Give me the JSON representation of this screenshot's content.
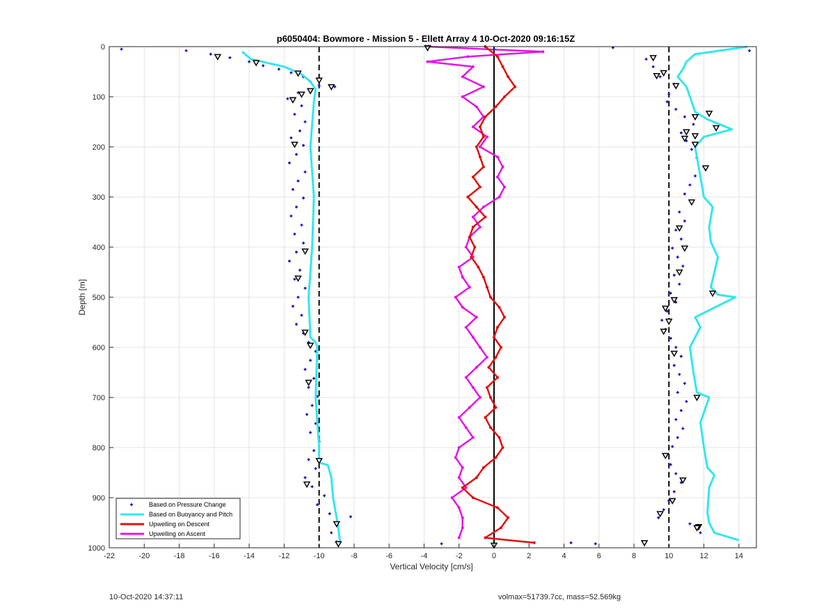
{
  "footer": {
    "timestamp": "10-Oct-2020 14:37:11",
    "info": "volmax=51739.7cc, mass=52.569kg"
  },
  "chart_data": {
    "type": "scatter",
    "title": "p6050404: Bowmore - Mission 5 - Ellett Array 4 10-Oct-2020 09:16:15Z",
    "xlabel": "Vertical Velocity [cm/s]",
    "ylabel": "Depth [m]",
    "xlim": [
      -22,
      15
    ],
    "ylim": [
      0,
      1000
    ],
    "y_reversed": true,
    "grid": true,
    "legend_position": "bottom-left",
    "xticks": [
      -22,
      -20,
      -18,
      -16,
      -14,
      -12,
      -10,
      -8,
      -6,
      -4,
      -2,
      0,
      2,
      4,
      6,
      8,
      10,
      12,
      14
    ],
    "yticks": [
      0,
      100,
      200,
      300,
      400,
      500,
      600,
      700,
      800,
      900,
      1000
    ],
    "reference_lines": [
      {
        "x": -10,
        "style": "dashed",
        "color": "#000000"
      },
      {
        "x": 0,
        "style": "solid",
        "color": "#000000"
      },
      {
        "x": 10,
        "style": "dashed",
        "color": "#000000"
      }
    ],
    "series": [
      {
        "name": "Based on Pressure Change",
        "kind": "points",
        "color": "#1515b8",
        "points": [
          [
            -21.3,
            5
          ],
          [
            -17.6,
            8
          ],
          [
            -16.2,
            15
          ],
          [
            -15.1,
            22
          ],
          [
            -14.0,
            30
          ],
          [
            -13.2,
            38
          ],
          [
            -12.3,
            45
          ],
          [
            -11.6,
            52
          ],
          [
            -10.9,
            60
          ],
          [
            -10.5,
            70
          ],
          [
            -10.0,
            78
          ],
          [
            -9.1,
            80
          ],
          [
            -11.2,
            92
          ],
          [
            -11.8,
            104
          ],
          [
            -11.0,
            118
          ],
          [
            -11.4,
            135
          ],
          [
            -10.8,
            150
          ],
          [
            -11.1,
            168
          ],
          [
            -11.6,
            182
          ],
          [
            -10.9,
            197
          ],
          [
            -11.3,
            215
          ],
          [
            -11.7,
            232
          ],
          [
            -10.8,
            250
          ],
          [
            -11.2,
            268
          ],
          [
            -11.5,
            285
          ],
          [
            -10.9,
            302
          ],
          [
            -11.3,
            320
          ],
          [
            -11.6,
            338
          ],
          [
            -11.0,
            356
          ],
          [
            -11.4,
            374
          ],
          [
            -10.9,
            392
          ],
          [
            -11.3,
            410
          ],
          [
            -11.7,
            428
          ],
          [
            -11.1,
            446
          ],
          [
            -11.4,
            464
          ],
          [
            -10.8,
            482
          ],
          [
            -11.2,
            500
          ],
          [
            -11.5,
            518
          ],
          [
            -11.0,
            536
          ],
          [
            -11.3,
            554
          ],
          [
            -10.9,
            572
          ],
          [
            -10.6,
            590
          ],
          [
            -10.2,
            608
          ],
          [
            -10.5,
            626
          ],
          [
            -10.8,
            644
          ],
          [
            -10.3,
            662
          ],
          [
            -10.6,
            680
          ],
          [
            -10.1,
            698
          ],
          [
            -10.4,
            716
          ],
          [
            -10.7,
            734
          ],
          [
            -10.2,
            752
          ],
          [
            -10.5,
            770
          ],
          [
            -10.0,
            788
          ],
          [
            -10.3,
            806
          ],
          [
            -10.6,
            824
          ],
          [
            -10.2,
            842
          ],
          [
            -10.8,
            860
          ],
          [
            -10.4,
            878
          ],
          [
            -9.7,
            896
          ],
          [
            -10.1,
            914
          ],
          [
            -9.4,
            932
          ],
          [
            -8.2,
            938
          ],
          [
            -9.0,
            952
          ],
          [
            -9.3,
            970
          ],
          [
            -9.0,
            988
          ],
          [
            0.0,
            5
          ],
          [
            6.8,
            2
          ],
          [
            14.6,
            8
          ],
          [
            8.7,
            25
          ],
          [
            9.1,
            40
          ],
          [
            9.5,
            60
          ],
          [
            10.3,
            75
          ],
          [
            10.0,
            95
          ],
          [
            9.9,
            110
          ],
          [
            10.4,
            125
          ],
          [
            10.9,
            140
          ],
          [
            11.4,
            155
          ],
          [
            10.7,
            172
          ],
          [
            11.0,
            188
          ],
          [
            11.3,
            205
          ],
          [
            11.6,
            222
          ],
          [
            12.0,
            240
          ],
          [
            11.5,
            258
          ],
          [
            11.2,
            276
          ],
          [
            10.9,
            294
          ],
          [
            11.3,
            312
          ],
          [
            10.6,
            330
          ],
          [
            10.9,
            348
          ],
          [
            10.4,
            366
          ],
          [
            10.7,
            384
          ],
          [
            10.2,
            402
          ],
          [
            10.5,
            420
          ],
          [
            10.8,
            438
          ],
          [
            10.3,
            456
          ],
          [
            10.6,
            474
          ],
          [
            10.1,
            492
          ],
          [
            10.4,
            510
          ],
          [
            9.9,
            528
          ],
          [
            9.6,
            546
          ],
          [
            9.8,
            564
          ],
          [
            10.1,
            582
          ],
          [
            10.4,
            600
          ],
          [
            10.7,
            618
          ],
          [
            10.3,
            636
          ],
          [
            10.6,
            654
          ],
          [
            10.9,
            672
          ],
          [
            10.5,
            690
          ],
          [
            11.0,
            708
          ],
          [
            10.7,
            726
          ],
          [
            10.4,
            744
          ],
          [
            10.8,
            762
          ],
          [
            10.5,
            780
          ],
          [
            10.2,
            798
          ],
          [
            9.8,
            816
          ],
          [
            10.1,
            834
          ],
          [
            10.4,
            852
          ],
          [
            10.7,
            870
          ],
          [
            10.3,
            888
          ],
          [
            10.0,
            906
          ],
          [
            9.7,
            924
          ],
          [
            9.4,
            940
          ],
          [
            11.2,
            952
          ],
          [
            11.8,
            970
          ],
          [
            4.4,
            990
          ],
          [
            5.8,
            992
          ],
          [
            -3.0,
            992
          ]
        ]
      },
      {
        "name": "Based on Buoyancy and Pitch",
        "kind": "line",
        "color": "#33e6ee",
        "profiles": [
          {
            "depth": [
              10,
              25,
              40,
              55,
              70,
              85,
              110,
              200,
              300,
              400,
              500,
              580,
              590,
              600,
              700,
              800,
              830,
              835,
              860,
              900,
              960,
              990
            ],
            "velocity": [
              -14.4,
              -13.9,
              -12.0,
              -11.0,
              -10.5,
              -10.2,
              -10.3,
              -10.5,
              -10.3,
              -10.4,
              -10.6,
              -10.5,
              -10.2,
              -10.1,
              -10.2,
              -10.0,
              -10.0,
              -9.5,
              -9.3,
              -9.2,
              -8.9,
              -8.8
            ]
          },
          {
            "depth": [
              0,
              15,
              30,
              45,
              60,
              80,
              100,
              130,
              145,
              165,
              180,
              200,
              260,
              300,
              320,
              360,
              390,
              420,
              480,
              495,
              500,
              540,
              560,
              600,
              650,
              690,
              700,
              750,
              800,
              840,
              855,
              880,
              930,
              950,
              970,
              985
            ],
            "velocity": [
              14.5,
              11.5,
              11.0,
              10.8,
              10.5,
              11.0,
              11.2,
              11.5,
              12.2,
              13.6,
              12.0,
              11.5,
              11.8,
              12.0,
              12.5,
              12.3,
              12.4,
              12.8,
              12.4,
              12.8,
              13.8,
              11.5,
              11.8,
              11.2,
              11.4,
              11.6,
              12.3,
              11.8,
              12.0,
              12.2,
              12.6,
              12.3,
              12.2,
              12.3,
              12.6,
              14.0
            ]
          }
        ]
      },
      {
        "name": "Upwelling on Descent",
        "kind": "line",
        "color": "#e01010",
        "depth": [
          0,
          20,
          40,
          60,
          80,
          100,
          120,
          140,
          160,
          180,
          200,
          220,
          240,
          260,
          280,
          300,
          320,
          340,
          360,
          380,
          400,
          420,
          440,
          460,
          480,
          500,
          520,
          540,
          560,
          580,
          600,
          620,
          640,
          660,
          680,
          700,
          720,
          740,
          760,
          780,
          800,
          820,
          840,
          860,
          880,
          900,
          920,
          940,
          960,
          980,
          990
        ],
        "velocity": [
          -0.5,
          0.2,
          0.5,
          0.8,
          1.2,
          0.6,
          0.1,
          -0.5,
          -0.8,
          -0.6,
          -1.0,
          -0.8,
          -0.6,
          -1.2,
          -0.8,
          -1.5,
          -1.0,
          -0.5,
          -1.2,
          -1.4,
          -1.1,
          -1.3,
          -0.9,
          -0.6,
          -0.4,
          -0.2,
          0.3,
          0.6,
          0.2,
          0.0,
          0.4,
          0.1,
          -0.3,
          0.2,
          -0.4,
          -0.2,
          0.1,
          -0.5,
          -0.2,
          0.3,
          0.5,
          0.1,
          -0.6,
          -1.0,
          -1.8,
          -1.2,
          0.2,
          0.8,
          0.4,
          -0.5,
          2.3
        ]
      },
      {
        "name": "Upwelling on Ascent",
        "kind": "line",
        "color": "#e316e3",
        "depth": [
          0,
          10,
          20,
          30,
          40,
          60,
          80,
          100,
          120,
          140,
          160,
          180,
          200,
          220,
          240,
          260,
          280,
          300,
          320,
          340,
          360,
          380,
          400,
          420,
          440,
          460,
          480,
          500,
          520,
          540,
          560,
          580,
          600,
          620,
          640,
          660,
          680,
          700,
          720,
          740,
          760,
          780,
          800,
          820,
          840,
          860,
          880,
          900,
          920,
          940,
          960,
          980
        ],
        "velocity": [
          -3.8,
          2.8,
          -1.5,
          -3.8,
          -1.2,
          -1.8,
          -0.6,
          -1.8,
          -1.0,
          -0.6,
          -1.2,
          -0.4,
          -0.8,
          0.2,
          0.5,
          0.2,
          0.6,
          0.3,
          -0.6,
          -1.2,
          -0.8,
          -1.4,
          -1.6,
          -1.2,
          -2.0,
          -1.8,
          -1.4,
          -2.2,
          -1.8,
          -1.0,
          -1.6,
          -1.2,
          -0.8,
          -0.4,
          -1.0,
          -1.6,
          -1.2,
          -0.8,
          -1.4,
          -2.0,
          -1.6,
          -1.2,
          -2.0,
          -2.2,
          -1.8,
          -2.0,
          -1.6,
          -2.4,
          -2.0,
          -1.8,
          -1.8,
          -2.0
        ]
      },
      {
        "name": "markers",
        "kind": "triangles",
        "color": "#000000",
        "points": [
          [
            -15.8,
            20
          ],
          [
            -13.6,
            32
          ],
          [
            -11.2,
            53
          ],
          [
            -10.0,
            67
          ],
          [
            -9.3,
            80
          ],
          [
            -10.5,
            88
          ],
          [
            -11.0,
            95
          ],
          [
            -11.5,
            106
          ],
          [
            -11.4,
            195
          ],
          [
            -10.8,
            408
          ],
          [
            -11.2,
            462
          ],
          [
            -10.8,
            570
          ],
          [
            -10.5,
            596
          ],
          [
            -10.6,
            670
          ],
          [
            -10.0,
            826
          ],
          [
            -10.7,
            873
          ],
          [
            -9.0,
            952
          ],
          [
            -8.9,
            992
          ],
          [
            -3.8,
            2
          ],
          [
            0.0,
            995
          ],
          [
            8.6,
            990
          ],
          [
            9.1,
            22
          ],
          [
            9.7,
            52
          ],
          [
            9.3,
            58
          ],
          [
            10.4,
            78
          ],
          [
            12.3,
            133
          ],
          [
            11.5,
            140
          ],
          [
            12.7,
            162
          ],
          [
            11.0,
            170
          ],
          [
            11.5,
            178
          ],
          [
            10.9,
            183
          ],
          [
            11.5,
            195
          ],
          [
            12.1,
            242
          ],
          [
            11.3,
            310
          ],
          [
            10.6,
            362
          ],
          [
            10.9,
            402
          ],
          [
            10.6,
            450
          ],
          [
            12.5,
            492
          ],
          [
            10.3,
            505
          ],
          [
            9.8,
            522
          ],
          [
            10.0,
            548
          ],
          [
            9.7,
            568
          ],
          [
            10.3,
            612
          ],
          [
            11.6,
            700
          ],
          [
            9.8,
            816
          ],
          [
            10.8,
            865
          ],
          [
            10.2,
            906
          ],
          [
            9.5,
            932
          ],
          [
            11.7,
            958
          ],
          [
            11.6,
            960
          ]
        ]
      }
    ]
  }
}
